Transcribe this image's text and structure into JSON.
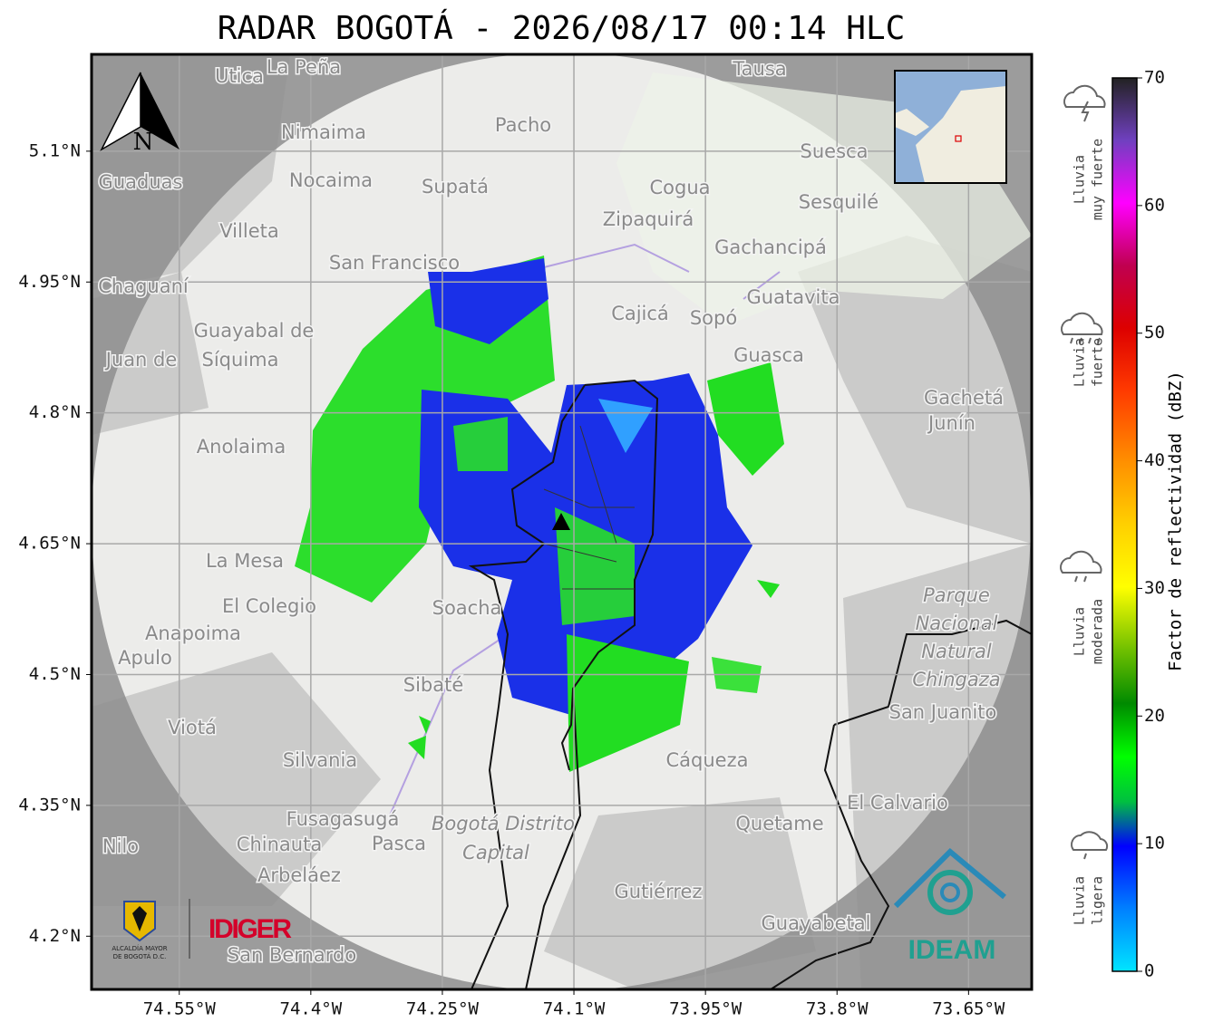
{
  "header": {
    "title": "RADAR BOGOTÁ - 2026/08/17 00:14 HLC"
  },
  "map": {
    "xlim": [
      -74.65,
      -73.578
    ],
    "ylim": [
      4.139,
      5.211
    ],
    "lat_ticks": [
      {
        "value": 5.1,
        "label": "5.1°N"
      },
      {
        "value": 4.95,
        "label": "4.95°N"
      },
      {
        "value": 4.8,
        "label": "4.8°N"
      },
      {
        "value": 4.65,
        "label": "4.65°N"
      },
      {
        "value": 4.5,
        "label": "4.5°N"
      },
      {
        "value": 4.35,
        "label": "4.35°N"
      },
      {
        "value": 4.2,
        "label": "4.2°N"
      }
    ],
    "lon_ticks": [
      {
        "value": -74.55,
        "label": "74.55°W"
      },
      {
        "value": -74.4,
        "label": "74.4°W"
      },
      {
        "value": -74.25,
        "label": "74.25°W"
      },
      {
        "value": -74.1,
        "label": "74.1°W"
      },
      {
        "value": -73.95,
        "label": "73.95°W"
      },
      {
        "value": -73.8,
        "label": "73.8°W"
      },
      {
        "value": -73.65,
        "label": "73.65°W"
      }
    ],
    "north": "N",
    "places": [
      "Utica",
      "La Peña",
      "Tausa",
      "Pacho",
      "Nimaima",
      "Suesca",
      "Guaduas",
      "Nocaima",
      "Supatá",
      "Cogua",
      "Sesquilé",
      "Zipaquirá",
      "Villeta",
      "Gachancipá",
      "San Francisco",
      "Chaguaní",
      "Guatavita",
      "Cajicá",
      "Sopó",
      "Guayabal de",
      "Síquima",
      "Juan de",
      "Guasca",
      "Gachetá",
      "Junín",
      "Anolaima",
      "La Mesa",
      "El Colegio",
      "Soacha",
      "Anapoima",
      "Apulo",
      "Sibaté",
      "Viotá",
      "Silvania",
      "Cáqueza",
      "San Juanito",
      "El Calvario",
      "Fusagasugá",
      "Quetame",
      "Nilo",
      "Chinauta",
      "Pasca",
      "Arbeláez",
      "Gutiérrez",
      "Guayabetal",
      "San Bernardo"
    ],
    "park_label": [
      "Parque",
      "Nacional",
      "Natural",
      "Chingaza"
    ],
    "district_label": [
      "Bogotá Distrito",
      "Capital"
    ]
  },
  "colorbar": {
    "label": "Factor de reflectividad (dBZ)",
    "lim": [
      0,
      70
    ],
    "ticks": [
      0,
      10,
      20,
      30,
      40,
      50,
      60,
      70
    ]
  },
  "rain_levels": [
    [
      "Lluvia",
      "muy fuerte"
    ],
    [
      "Lluvia",
      "fuerte"
    ],
    [
      "Lluvia",
      "moderada"
    ],
    [
      "Lluvia",
      "ligera"
    ]
  ],
  "logos": {
    "alcaldia": [
      "ALCALDÍA MAYOR",
      "DE BOGOTÁ D.C."
    ],
    "idiger": "IDIGER",
    "ideam": "IDEAM"
  }
}
